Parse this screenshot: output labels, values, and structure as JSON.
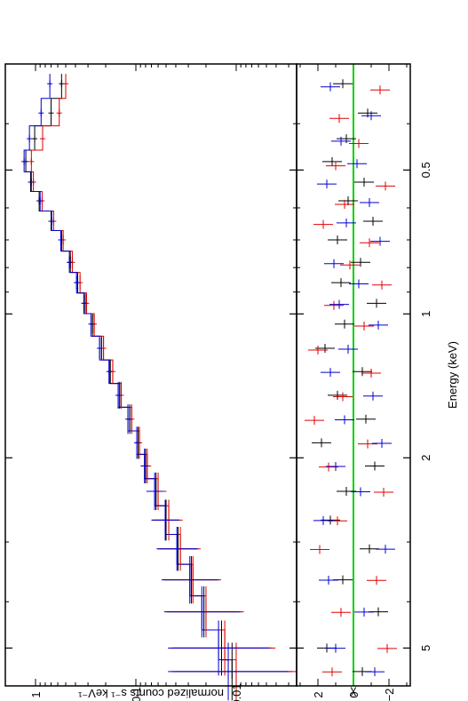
{
  "chart_data": {
    "type": "scatter",
    "orientation": "rotated-90-clockwise",
    "xlabel": "Energy (keV)",
    "x_scale": "log",
    "xlim": [
      0.3,
      6.0
    ],
    "x_ticks": [
      {
        "value": 0.5,
        "label": "0.5"
      },
      {
        "value": 1,
        "label": "1"
      },
      {
        "value": 2,
        "label": "2"
      },
      {
        "value": 5,
        "label": "5"
      }
    ],
    "panels": [
      {
        "name": "spectrum",
        "ylabel": "normalized counts s⁻¹ keV⁻¹",
        "y_scale": "log",
        "ylim": [
          0.0025,
          2.0
        ],
        "y_ticks": [
          {
            "value": 1,
            "label": "1"
          },
          {
            "value": 0.1,
            "label": "0.1"
          },
          {
            "value": 0.01,
            "label": "0.01"
          }
        ]
      },
      {
        "name": "residuals",
        "ylabel": "χ",
        "y_scale": "linear",
        "ylim": [
          -3.2,
          3.2
        ],
        "y_ticks": [
          {
            "value": 2,
            "label": "2"
          },
          {
            "value": 0,
            "label": "0"
          },
          {
            "value": -2,
            "label": "−2"
          }
        ],
        "reference_line": {
          "value": 0,
          "color": "#00d000"
        }
      }
    ],
    "series": [
      {
        "color": "#000000",
        "spectrum_points": [
          [
            0.33,
            0.55
          ],
          [
            0.38,
            0.7
          ],
          [
            0.43,
            1.02
          ],
          [
            0.48,
            1.25
          ],
          [
            0.53,
            1.12
          ],
          [
            0.58,
            0.92
          ],
          [
            0.64,
            0.7
          ],
          [
            0.7,
            0.55
          ],
          [
            0.78,
            0.45
          ],
          [
            0.86,
            0.38
          ],
          [
            0.95,
            0.32
          ],
          [
            1.05,
            0.27
          ],
          [
            1.18,
            0.22
          ],
          [
            1.32,
            0.18
          ],
          [
            1.48,
            0.145
          ],
          [
            1.66,
            0.115
          ],
          [
            1.86,
            0.095
          ],
          [
            2.08,
            0.08
          ],
          [
            2.35,
            0.063
          ],
          [
            2.7,
            0.05
          ],
          [
            3.1,
            0.038
          ],
          [
            3.6,
            0.028
          ],
          [
            4.2,
            0.021
          ],
          [
            5.0,
            0.014
          ],
          [
            5.6,
            0.011
          ]
        ],
        "residuals": [
          [
            0.33,
            0.6
          ],
          [
            0.38,
            -0.8
          ],
          [
            0.43,
            0.4
          ],
          [
            0.48,
            1.2
          ],
          [
            0.53,
            -0.6
          ],
          [
            0.58,
            0.3
          ],
          [
            0.64,
            -1.1
          ],
          [
            0.7,
            0.9
          ],
          [
            0.78,
            -0.4
          ],
          [
            0.86,
            0.7
          ],
          [
            0.95,
            -1.3
          ],
          [
            1.05,
            0.5
          ],
          [
            1.18,
            1.6
          ],
          [
            1.32,
            -0.5
          ],
          [
            1.48,
            0.9
          ],
          [
            1.66,
            -0.7
          ],
          [
            1.86,
            1.8
          ],
          [
            2.08,
            -1.2
          ],
          [
            2.35,
            0.4
          ],
          [
            2.7,
            1.3
          ],
          [
            3.1,
            -0.9
          ],
          [
            3.6,
            0.6
          ],
          [
            4.2,
            -1.4
          ],
          [
            5.0,
            1.5
          ],
          [
            5.6,
            -0.5
          ]
        ]
      },
      {
        "color": "#e00000",
        "spectrum_points": [
          [
            0.33,
            0.5
          ],
          [
            0.38,
            0.58
          ],
          [
            0.43,
            0.85
          ],
          [
            0.48,
            1.1
          ],
          [
            0.53,
            1.05
          ],
          [
            0.58,
            0.86
          ],
          [
            0.64,
            0.66
          ],
          [
            0.7,
            0.53
          ],
          [
            0.78,
            0.43
          ],
          [
            0.86,
            0.36
          ],
          [
            0.95,
            0.31
          ],
          [
            1.05,
            0.26
          ],
          [
            1.18,
            0.21
          ],
          [
            1.32,
            0.17
          ],
          [
            1.48,
            0.14
          ],
          [
            1.66,
            0.11
          ],
          [
            1.86,
            0.092
          ],
          [
            2.08,
            0.077
          ],
          [
            2.35,
            0.06
          ],
          [
            2.7,
            0.047
          ],
          [
            3.1,
            0.036
          ],
          [
            3.6,
            0.027
          ],
          [
            4.2,
            0.02
          ],
          [
            5.0,
            0.013
          ],
          [
            5.6,
            0.01
          ]
        ],
        "residuals": [
          [
            0.34,
            -1.5
          ],
          [
            0.39,
            0.8
          ],
          [
            0.44,
            -0.3
          ],
          [
            0.49,
            1.0
          ],
          [
            0.54,
            -1.8
          ],
          [
            0.59,
            0.5
          ],
          [
            0.65,
            1.7
          ],
          [
            0.71,
            -0.9
          ],
          [
            0.79,
            0.2
          ],
          [
            0.87,
            -1.6
          ],
          [
            0.96,
            1.1
          ],
          [
            1.06,
            -0.6
          ],
          [
            1.19,
            2.0
          ],
          [
            1.33,
            -1.0
          ],
          [
            1.49,
            0.6
          ],
          [
            1.67,
            2.2
          ],
          [
            1.87,
            -0.8
          ],
          [
            2.09,
            1.4
          ],
          [
            2.36,
            -1.7
          ],
          [
            2.71,
            0.9
          ],
          [
            3.11,
            1.9
          ],
          [
            3.61,
            -1.3
          ],
          [
            4.21,
            0.7
          ],
          [
            5.01,
            -1.9
          ],
          [
            5.61,
            1.2
          ]
        ]
      },
      {
        "color": "#0000d0",
        "spectrum_points": [
          [
            0.33,
            0.72
          ],
          [
            0.38,
            0.88
          ],
          [
            0.43,
            1.15
          ],
          [
            0.48,
            1.3
          ],
          [
            0.53,
            1.1
          ],
          [
            0.58,
            0.9
          ],
          [
            0.64,
            0.69
          ],
          [
            0.7,
            0.56
          ],
          [
            0.78,
            0.46
          ],
          [
            0.86,
            0.39
          ],
          [
            0.95,
            0.33
          ],
          [
            1.05,
            0.28
          ],
          [
            1.18,
            0.23
          ],
          [
            1.32,
            0.185
          ],
          [
            1.48,
            0.15
          ],
          [
            1.66,
            0.12
          ],
          [
            1.86,
            0.098
          ],
          [
            2.08,
            0.082
          ],
          [
            2.35,
            0.065
          ],
          [
            2.7,
            0.051
          ],
          [
            3.1,
            0.039
          ],
          [
            3.6,
            0.029
          ],
          [
            4.2,
            0.022
          ],
          [
            5.0,
            0.015
          ],
          [
            5.6,
            0.012
          ]
        ],
        "residuals": [
          [
            0.335,
            1.3
          ],
          [
            0.385,
            -1.0
          ],
          [
            0.435,
            0.7
          ],
          [
            0.485,
            -0.2
          ],
          [
            0.535,
            1.5
          ],
          [
            0.585,
            -0.9
          ],
          [
            0.645,
            0.4
          ],
          [
            0.705,
            -1.5
          ],
          [
            0.785,
            1.1
          ],
          [
            0.865,
            -0.3
          ],
          [
            0.955,
            0.8
          ],
          [
            1.055,
            -1.4
          ],
          [
            1.185,
            0.3
          ],
          [
            1.325,
            1.3
          ],
          [
            1.485,
            -1.1
          ],
          [
            1.665,
            0.5
          ],
          [
            1.865,
            -1.6
          ],
          [
            2.085,
            1.0
          ],
          [
            2.355,
            -0.4
          ],
          [
            2.705,
            1.7
          ],
          [
            3.105,
            -1.8
          ],
          [
            3.605,
            1.4
          ],
          [
            4.205,
            -0.6
          ],
          [
            5.005,
            1.0
          ],
          [
            5.605,
            -1.2
          ]
        ]
      }
    ]
  }
}
